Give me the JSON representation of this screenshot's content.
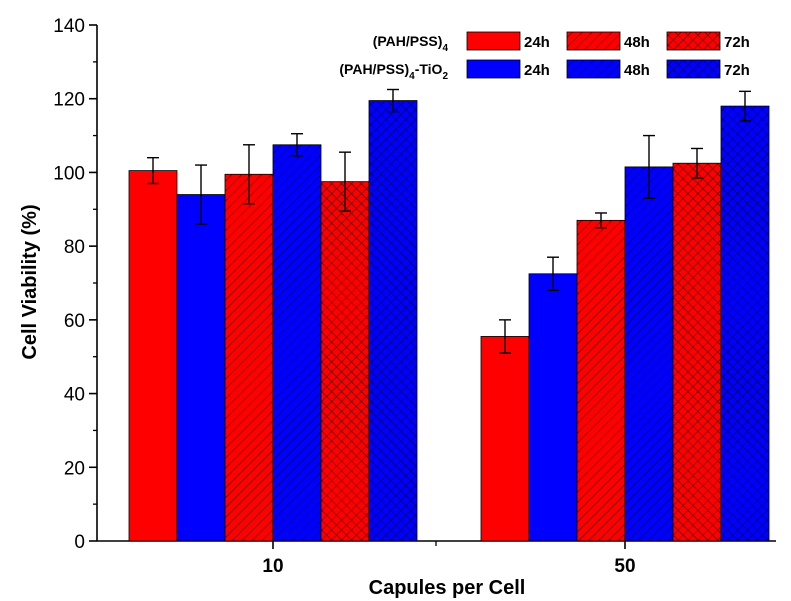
{
  "chart_data": {
    "type": "bar",
    "xlabel": "Capules per Cell",
    "ylabel": "Cell Viability (%)",
    "ylim": [
      0,
      140
    ],
    "yticks": [
      "0",
      "20",
      "40",
      "60",
      "80",
      "100",
      "120",
      "140"
    ],
    "categories": [
      "10",
      "50"
    ],
    "legend_groups": [
      {
        "base": "(PAH/PSS)",
        "sub": "4",
        "suffix": "",
        "sub2": ""
      },
      {
        "base": "(PAH/PSS)",
        "sub": "4",
        "suffix": "-TiO",
        "sub2": "2"
      }
    ],
    "series": [
      {
        "name": "24h",
        "group": 0,
        "color": "#ff0000",
        "pattern": "solid",
        "values": [
          100.5,
          55.5
        ],
        "errors": [
          3.5,
          4.5
        ]
      },
      {
        "name": "24h",
        "group": 1,
        "color": "#0000ff",
        "pattern": "solid",
        "values": [
          94.0,
          72.5
        ],
        "errors": [
          8.0,
          4.5
        ]
      },
      {
        "name": "48h",
        "group": 0,
        "color": "#ff0000",
        "pattern": "hatch",
        "values": [
          99.5,
          87.0
        ],
        "errors": [
          8.0,
          2.0
        ]
      },
      {
        "name": "48h",
        "group": 1,
        "color": "#0000ff",
        "pattern": "hatch",
        "values": [
          107.5,
          101.5
        ],
        "errors": [
          3.0,
          8.5
        ]
      },
      {
        "name": "72h",
        "group": 0,
        "color": "#ff0000",
        "pattern": "cross",
        "values": [
          97.5,
          102.5
        ],
        "errors": [
          8.0,
          4.0
        ]
      },
      {
        "name": "72h",
        "group": 1,
        "color": "#0000ff",
        "pattern": "cross",
        "values": [
          119.5,
          118.0
        ],
        "errors": [
          3.0,
          4.0
        ]
      }
    ]
  }
}
